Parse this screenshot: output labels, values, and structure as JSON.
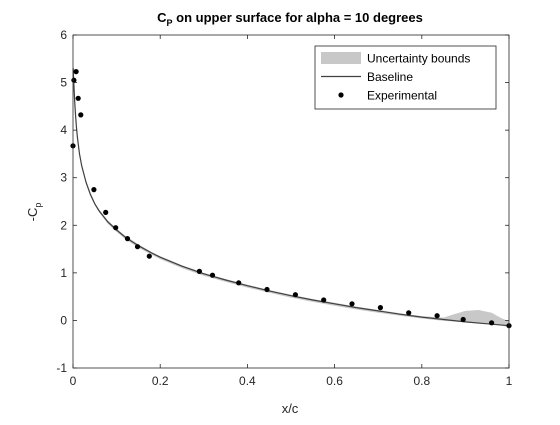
{
  "chart_data": {
    "type": "line",
    "title": {
      "prefix": "C",
      "subscript": "P",
      "suffix": " on upper surface for alpha = 10 degrees"
    },
    "xlabel": "x/c",
    "ylabel": {
      "prefix": "-C",
      "subscript": "p"
    },
    "xlim": [
      0,
      1
    ],
    "ylim": [
      -1,
      6
    ],
    "xticks": [
      0,
      0.2,
      0.4,
      0.6,
      0.8,
      1
    ],
    "xtick_labels": [
      "0",
      "0.2",
      "0.4",
      "0.6",
      "0.8",
      "1"
    ],
    "yticks": [
      -1,
      0,
      1,
      2,
      3,
      4,
      5,
      6
    ],
    "ytick_labels": [
      "-1",
      "0",
      "1",
      "2",
      "3",
      "4",
      "5",
      "6"
    ],
    "grid": false,
    "legend_position": "top-right",
    "colors": {
      "band": "#c8c8c8",
      "baseline": "#404040",
      "experimental": "#000000",
      "axes": "#262626"
    },
    "legend": [
      {
        "label": "Uncertainty bounds",
        "kind": "band"
      },
      {
        "label": "Baseline",
        "kind": "line"
      },
      {
        "label": "Experimental",
        "kind": "marker"
      }
    ],
    "series": [
      {
        "name": "Baseline",
        "kind": "line",
        "x": [
          0.0005,
          0.001,
          0.002,
          0.004,
          0.006,
          0.008,
          0.01,
          0.015,
          0.02,
          0.03,
          0.04,
          0.05,
          0.06,
          0.08,
          0.1,
          0.12,
          0.15,
          0.18,
          0.2,
          0.25,
          0.3,
          0.35,
          0.4,
          0.45,
          0.5,
          0.55,
          0.6,
          0.65,
          0.7,
          0.75,
          0.8,
          0.85,
          0.9,
          0.95,
          1.0
        ],
        "y": [
          5.3,
          5.15,
          4.95,
          4.6,
          4.3,
          4.05,
          3.85,
          3.5,
          3.25,
          2.9,
          2.65,
          2.45,
          2.3,
          2.07,
          1.9,
          1.75,
          1.57,
          1.42,
          1.33,
          1.14,
          0.98,
          0.85,
          0.73,
          0.62,
          0.52,
          0.43,
          0.35,
          0.27,
          0.2,
          0.13,
          0.07,
          0.02,
          -0.03,
          -0.07,
          -0.11
        ]
      },
      {
        "name": "Uncertainty bounds",
        "kind": "band",
        "x": [
          0.0005,
          0.001,
          0.002,
          0.004,
          0.006,
          0.008,
          0.01,
          0.015,
          0.02,
          0.03,
          0.04,
          0.05,
          0.06,
          0.08,
          0.1,
          0.12,
          0.15,
          0.18,
          0.2,
          0.25,
          0.3,
          0.35,
          0.4,
          0.45,
          0.5,
          0.55,
          0.6,
          0.65,
          0.7,
          0.75,
          0.8,
          0.85,
          0.87,
          0.9,
          0.93,
          0.96,
          0.98,
          1.0
        ],
        "upper": [
          5.4,
          5.24,
          5.03,
          4.67,
          4.37,
          4.11,
          3.9,
          3.55,
          3.29,
          2.94,
          2.69,
          2.48,
          2.33,
          2.1,
          1.93,
          1.78,
          1.6,
          1.44,
          1.35,
          1.16,
          1.0,
          0.87,
          0.75,
          0.64,
          0.54,
          0.45,
          0.37,
          0.29,
          0.22,
          0.15,
          0.09,
          0.06,
          0.12,
          0.2,
          0.22,
          0.16,
          0.06,
          -0.02
        ],
        "lower": [
          5.2,
          5.06,
          4.87,
          4.53,
          4.23,
          3.99,
          3.8,
          3.45,
          3.21,
          2.86,
          2.61,
          2.42,
          2.27,
          2.03,
          1.86,
          1.71,
          1.53,
          1.38,
          1.29,
          1.1,
          0.94,
          0.81,
          0.69,
          0.58,
          0.48,
          0.39,
          0.31,
          0.23,
          0.16,
          0.1,
          0.04,
          -0.01,
          -0.02,
          -0.04,
          -0.06,
          -0.08,
          -0.1,
          -0.14
        ]
      },
      {
        "name": "Experimental",
        "kind": "scatter",
        "x": [
          0.0,
          0.002,
          0.007,
          0.012,
          0.018,
          0.048,
          0.075,
          0.098,
          0.125,
          0.148,
          0.175,
          0.29,
          0.32,
          0.38,
          0.445,
          0.51,
          0.575,
          0.64,
          0.705,
          0.77,
          0.835,
          0.895,
          0.96,
          1.0
        ],
        "y": [
          3.67,
          5.05,
          5.23,
          4.67,
          4.32,
          2.75,
          2.27,
          1.95,
          1.72,
          1.55,
          1.35,
          1.03,
          0.95,
          0.79,
          0.65,
          0.54,
          0.43,
          0.35,
          0.27,
          0.16,
          0.1,
          0.02,
          -0.05,
          -0.11
        ]
      }
    ]
  }
}
